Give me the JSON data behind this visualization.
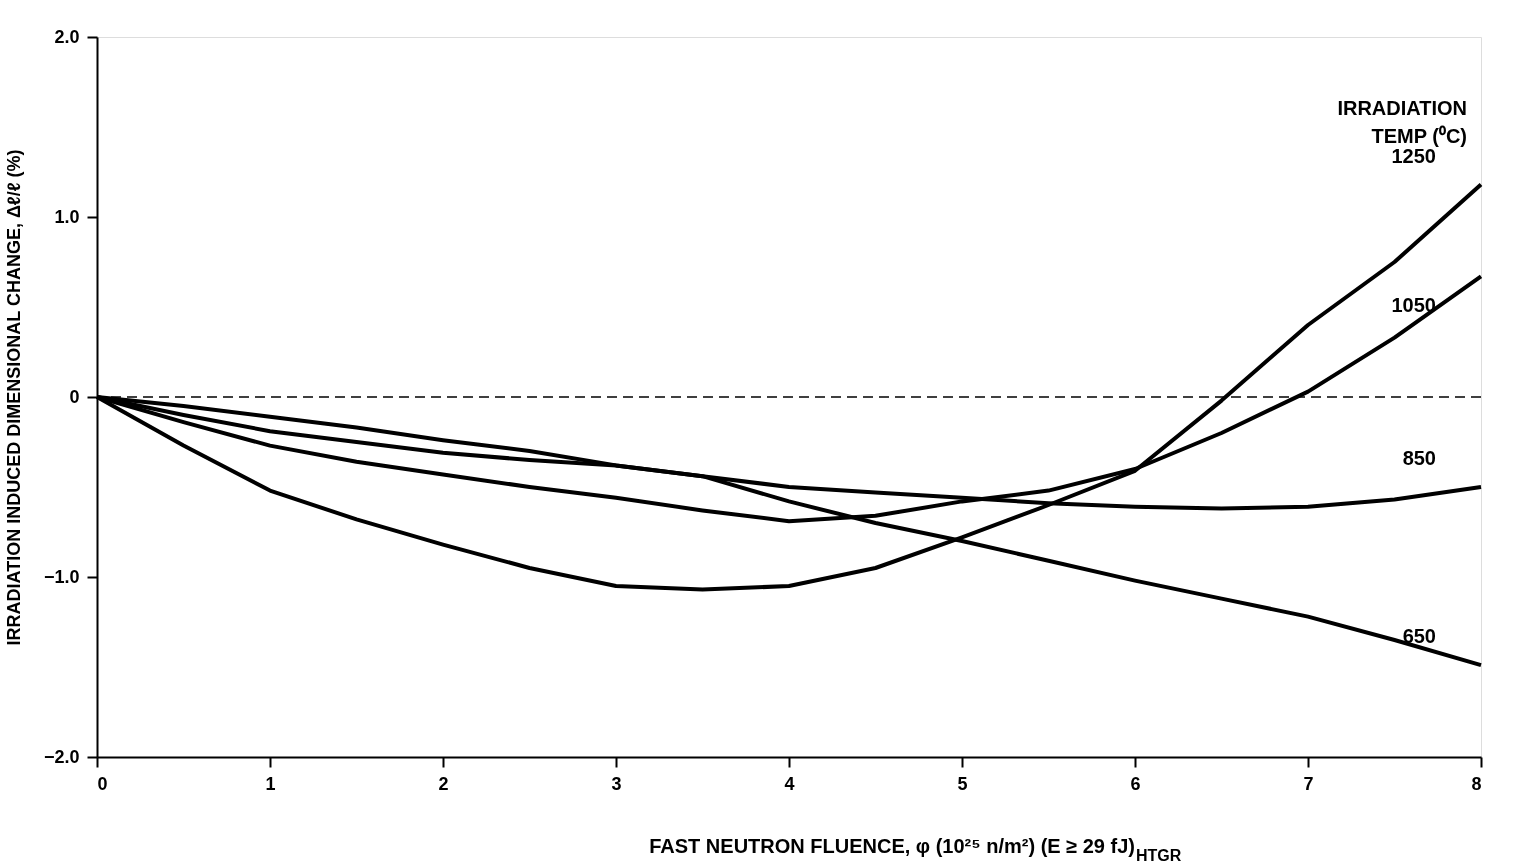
{
  "chart_data": {
    "type": "line",
    "xlabel": "FAST NEUTRON FLUENCE, φ (10²⁵ n/m²) (E ≥ 29 fJ)$_{HTGR}$",
    "ylabel": "IRRADIATION INDUCED DIMENSIONAL CHANGE, Δℓ/ℓ (%)",
    "legend_title": "IRRADIATION TEMP (⁰C)",
    "x": [
      0,
      0.5,
      1,
      1.5,
      2,
      2.5,
      3,
      3.5,
      4,
      4.5,
      5,
      5.5,
      6,
      6.5,
      7,
      7.5,
      8
    ],
    "series": [
      {
        "name": "1250",
        "color": "#000000",
        "values": [
          0,
          -0.27,
          -0.52,
          -0.68,
          -0.82,
          -0.95,
          -1.05,
          -1.07,
          -1.05,
          -0.95,
          -0.78,
          -0.6,
          -0.41,
          -0.02,
          0.4,
          0.75,
          1.18
        ]
      },
      {
        "name": "1050",
        "color": "#000000",
        "values": [
          0,
          -0.14,
          -0.27,
          -0.36,
          -0.43,
          -0.5,
          -0.56,
          -0.63,
          -0.69,
          -0.66,
          -0.58,
          -0.52,
          -0.4,
          -0.2,
          0.03,
          0.33,
          0.67
        ]
      },
      {
        "name": "850",
        "color": "#000000",
        "values": [
          0,
          -0.05,
          -0.11,
          -0.17,
          -0.24,
          -0.3,
          -0.38,
          -0.44,
          -0.5,
          -0.53,
          -0.56,
          -0.59,
          -0.61,
          -0.62,
          -0.61,
          -0.57,
          -0.5
        ]
      },
      {
        "name": "650",
        "color": "#000000",
        "values": [
          0,
          -0.1,
          -0.19,
          -0.25,
          -0.31,
          -0.35,
          -0.38,
          -0.44,
          -0.58,
          -0.7,
          -0.8,
          -0.91,
          -1.02,
          -1.12,
          -1.22,
          -1.35,
          -1.49
        ]
      }
    ],
    "xlim": [
      0,
      8
    ],
    "xticks": [
      0,
      1,
      2,
      3,
      4,
      5,
      6,
      7,
      8
    ],
    "ylim": [
      -2,
      2
    ],
    "yticks": [
      {
        "value": -2,
        "label": "−2.0"
      },
      {
        "value": -1,
        "label": "−1.0"
      },
      0,
      {
        "value": 1,
        "label": "1.0"
      },
      {
        "value": 2,
        "label": "2.0"
      }
    ],
    "ref_lines": [
      {
        "axis": "y",
        "value": 0,
        "color": "#000000",
        "line_style": "dashed"
      }
    ],
    "grid": false,
    "legend": false,
    "marker": "none",
    "line_style": "solid"
  }
}
